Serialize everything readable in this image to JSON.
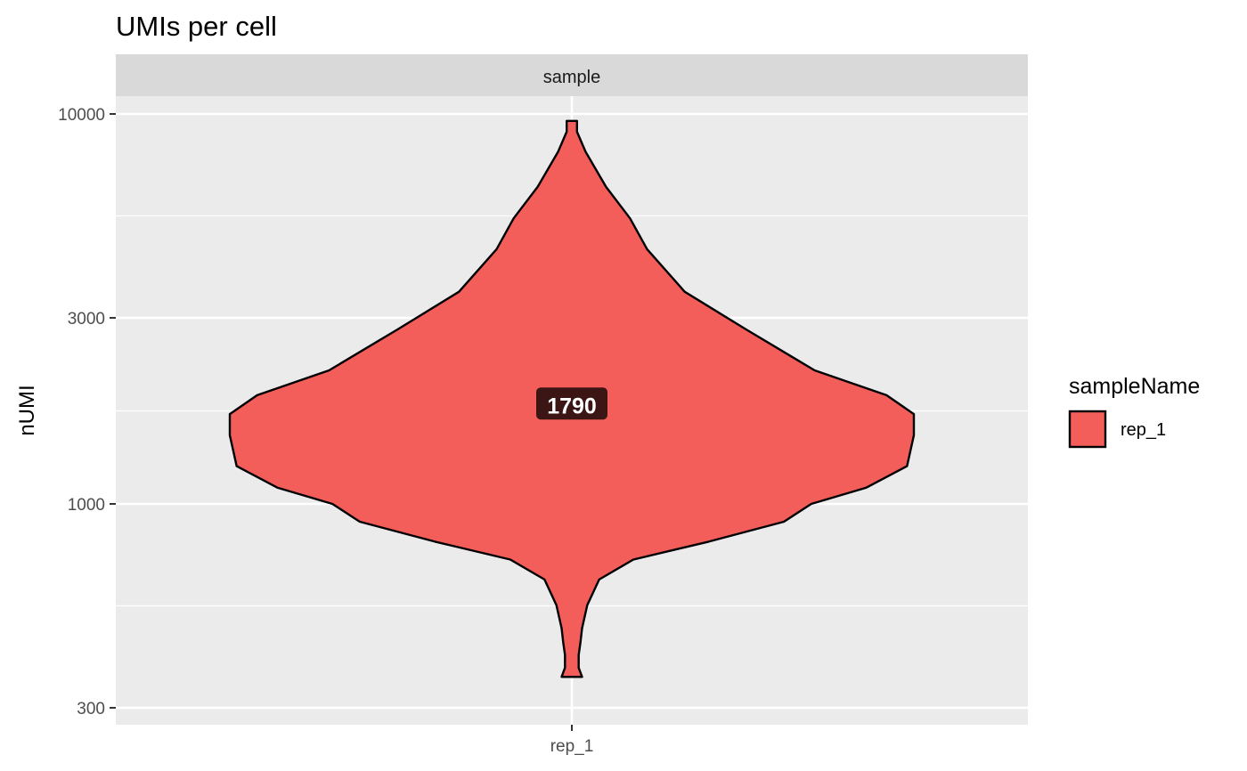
{
  "chart_data": {
    "type": "violin",
    "title": "UMIs per cell",
    "facet_label": "sample",
    "xlabel": "",
    "ylabel": "nUMI",
    "y_scale": "log10",
    "ylim": [
      280,
      12000
    ],
    "y_ticks": [
      300,
      1000,
      3000,
      10000
    ],
    "y_tick_labels": [
      "300",
      "1000",
      "3000",
      "10000"
    ],
    "categories": [
      "rep_1"
    ],
    "grid": true,
    "legend": {
      "title": "sampleName",
      "position": "right",
      "entries": [
        "rep_1"
      ]
    },
    "series": [
      {
        "name": "rep_1",
        "color": "#F35E5A",
        "median": 1790,
        "median_label": "1790",
        "range": [
          360,
          9600
        ],
        "density_profile": [
          [
            360,
            0.03
          ],
          [
            380,
            0.02
          ],
          [
            410,
            0.02
          ],
          [
            440,
            0.025
          ],
          [
            480,
            0.03
          ],
          [
            550,
            0.045
          ],
          [
            640,
            0.08
          ],
          [
            720,
            0.18
          ],
          [
            800,
            0.4
          ],
          [
            900,
            0.62
          ],
          [
            1000,
            0.7
          ],
          [
            1100,
            0.86
          ],
          [
            1250,
            0.98
          ],
          [
            1500,
            1.0
          ],
          [
            1700,
            1.0
          ],
          [
            1900,
            0.92
          ],
          [
            2200,
            0.71
          ],
          [
            2800,
            0.51
          ],
          [
            3500,
            0.33
          ],
          [
            4500,
            0.22
          ],
          [
            5400,
            0.17
          ],
          [
            6500,
            0.1
          ],
          [
            8000,
            0.04
          ],
          [
            9000,
            0.015
          ],
          [
            9600,
            0.015
          ]
        ]
      }
    ]
  }
}
